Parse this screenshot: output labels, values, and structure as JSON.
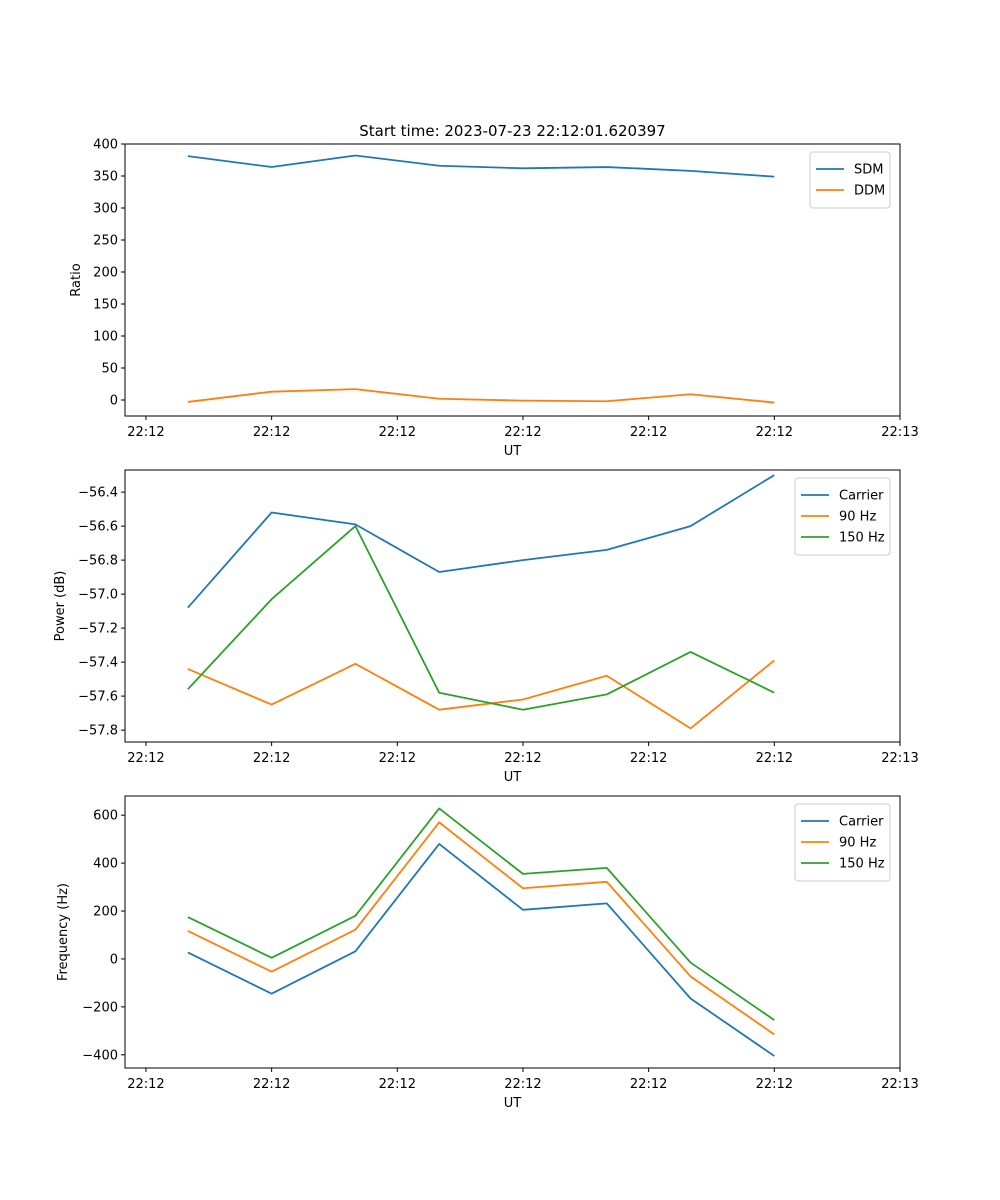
{
  "figure_title": "Start time: 2023-07-23 22:12:01.620397",
  "colors": {
    "blue": "#1f77b4",
    "orange": "#ff7f0e",
    "green": "#2ca02c"
  },
  "chart_data": [
    {
      "type": "line",
      "title": "Start time: 2023-07-23 22:12:01.620397",
      "xlabel": "UT",
      "ylabel": "Ratio",
      "xtick_labels": [
        "22:12",
        "22:12",
        "22:12",
        "22:12",
        "22:12",
        "22:12",
        "22:13"
      ],
      "x": [
        1,
        2,
        3,
        4,
        5,
        6,
        7,
        8
      ],
      "xlim": [
        0.25,
        9.5
      ],
      "ylim": [
        -25,
        400
      ],
      "yticks": [
        0,
        50,
        100,
        150,
        200,
        250,
        300,
        350,
        400
      ],
      "ytick_labels": [
        "0",
        "50",
        "100",
        "150",
        "200",
        "250",
        "300",
        "350",
        "400"
      ],
      "legend": "top-right",
      "series": [
        {
          "name": "SDM",
          "color": "#1f77b4",
          "values": [
            381,
            364,
            382,
            366,
            362,
            364,
            358,
            349
          ]
        },
        {
          "name": "DDM",
          "color": "#ff7f0e",
          "values": [
            -3,
            13,
            17,
            2,
            -1,
            -2,
            9,
            -4
          ]
        }
      ]
    },
    {
      "type": "line",
      "xlabel": "UT",
      "ylabel": "Power (dB)",
      "xtick_labels": [
        "22:12",
        "22:12",
        "22:12",
        "22:12",
        "22:12",
        "22:12",
        "22:13"
      ],
      "x": [
        1,
        2,
        3,
        4,
        5,
        6,
        7,
        8
      ],
      "xlim": [
        0.25,
        9.5
      ],
      "ylim": [
        -57.87,
        -56.27
      ],
      "yticks": [
        -57.8,
        -57.6,
        -57.4,
        -57.2,
        -57.0,
        -56.8,
        -56.6,
        -56.4
      ],
      "ytick_labels": [
        "−57.8",
        "−57.6",
        "−57.4",
        "−57.2",
        "−57.0",
        "−56.8",
        "−56.6",
        "−56.4"
      ],
      "legend": "top-right",
      "series": [
        {
          "name": "Carrier",
          "color": "#1f77b4",
          "values": [
            -57.08,
            -56.52,
            -56.59,
            -56.87,
            -56.8,
            -56.74,
            -56.6,
            -56.3
          ]
        },
        {
          "name": "90 Hz",
          "color": "#ff7f0e",
          "values": [
            -57.44,
            -57.65,
            -57.41,
            -57.68,
            -57.62,
            -57.48,
            -57.79,
            -57.39
          ]
        },
        {
          "name": "150 Hz",
          "color": "#2ca02c",
          "values": [
            -57.56,
            -57.03,
            -56.6,
            -57.58,
            -57.68,
            -57.59,
            -57.34,
            -57.58
          ]
        }
      ]
    },
    {
      "type": "line",
      "xlabel": "UT",
      "ylabel": "Frequency (Hz)",
      "xtick_labels": [
        "22:12",
        "22:12",
        "22:12",
        "22:12",
        "22:12",
        "22:12",
        "22:13"
      ],
      "x": [
        1,
        2,
        3,
        4,
        5,
        6,
        7,
        8
      ],
      "xlim": [
        0.25,
        9.5
      ],
      "ylim": [
        -455,
        680
      ],
      "yticks": [
        -400,
        -200,
        0,
        200,
        400,
        600
      ],
      "ytick_labels": [
        "−400",
        "−200",
        "0",
        "200",
        "400",
        "600"
      ],
      "legend": "top-right",
      "series": [
        {
          "name": "Carrier",
          "color": "#1f77b4",
          "values": [
            27,
            -145,
            32,
            480,
            205,
            232,
            -165,
            -405
          ]
        },
        {
          "name": "90 Hz",
          "color": "#ff7f0e",
          "values": [
            117,
            -53,
            122,
            570,
            295,
            322,
            -73,
            -315
          ]
        },
        {
          "name": "150 Hz",
          "color": "#2ca02c",
          "values": [
            175,
            5,
            180,
            628,
            355,
            380,
            -15,
            -255
          ]
        }
      ]
    }
  ]
}
